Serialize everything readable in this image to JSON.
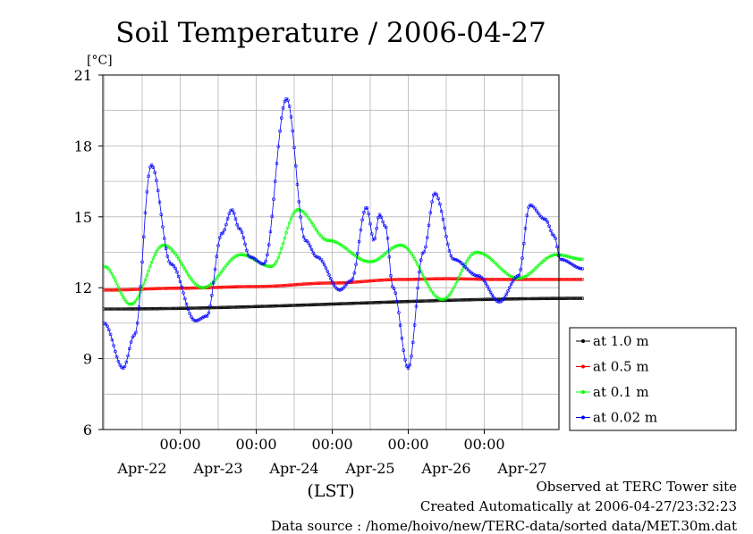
{
  "chart_data": {
    "type": "line",
    "title": "Soil Temperature / 2006-04-27",
    "ylabel": "[°C]",
    "xlabel": "(LST)",
    "ylim": [
      6,
      21
    ],
    "yticks": [
      6,
      9,
      12,
      15,
      18,
      21
    ],
    "xlim_days": [
      0,
      6.3
    ],
    "time_ticks": [
      "00:00",
      "00:00",
      "00:00",
      "00:00",
      "00:00"
    ],
    "date_labels": [
      "Apr-22",
      "Apr-23",
      "Apr-24",
      "Apr-25",
      "Apr-26",
      "Apr-27"
    ],
    "grid": true,
    "legend_position": "right",
    "series": [
      {
        "name": "at 1.0 m",
        "color": "#000000",
        "x": [
          0,
          6.3
        ],
        "y": [
          11.1,
          11.55
        ]
      },
      {
        "name": "at 0.5 m",
        "color": "#ff0000",
        "x": [
          0,
          1,
          2,
          3,
          3.9,
          4.5,
          5.2,
          6.3
        ],
        "y": [
          11.9,
          11.98,
          12.05,
          12.2,
          12.35,
          12.38,
          12.35,
          12.35
        ]
      },
      {
        "name": "at 0.1 m",
        "color": "#00ff00",
        "x": [
          0,
          0.35,
          0.78,
          1.3,
          1.8,
          2.2,
          2.55,
          2.95,
          3.5,
          3.9,
          4.45,
          4.9,
          5.45,
          5.95,
          6.3
        ],
        "y": [
          12.9,
          11.3,
          13.8,
          12.0,
          13.4,
          12.9,
          15.3,
          14.0,
          13.1,
          13.8,
          11.5,
          13.5,
          12.4,
          13.4,
          13.2
        ]
      },
      {
        "name": "at 0.02 m",
        "color": "#0000ff",
        "x": [
          0,
          0.25,
          0.4,
          0.62,
          0.88,
          1.2,
          1.35,
          1.55,
          1.68,
          1.78,
          1.92,
          2.1,
          2.4,
          2.65,
          2.8,
          3.1,
          3.25,
          3.45,
          3.55,
          3.62,
          3.7,
          3.8,
          4.0,
          4.2,
          4.35,
          4.6,
          4.92,
          5.2,
          5.45,
          5.6,
          5.8,
          5.92,
          6.0,
          6.3
        ],
        "y": [
          10.5,
          8.6,
          10.0,
          17.2,
          13.0,
          10.6,
          10.8,
          14.3,
          15.3,
          14.5,
          13.3,
          13.0,
          20.0,
          14.0,
          13.3,
          11.9,
          12.3,
          15.4,
          14.0,
          15.1,
          14.6,
          12.0,
          8.6,
          13.5,
          16.0,
          13.2,
          12.5,
          11.4,
          12.5,
          15.5,
          14.9,
          14.2,
          13.2,
          12.8
        ]
      }
    ]
  },
  "footer": {
    "line1": "Observed at TERC Tower site",
    "line2": "Created Automatically at 2006-04-27/23:32:23",
    "line3": "Data source : /home/hoivo/new/TERC-data/sorted  data/MET.30m.dat"
  }
}
